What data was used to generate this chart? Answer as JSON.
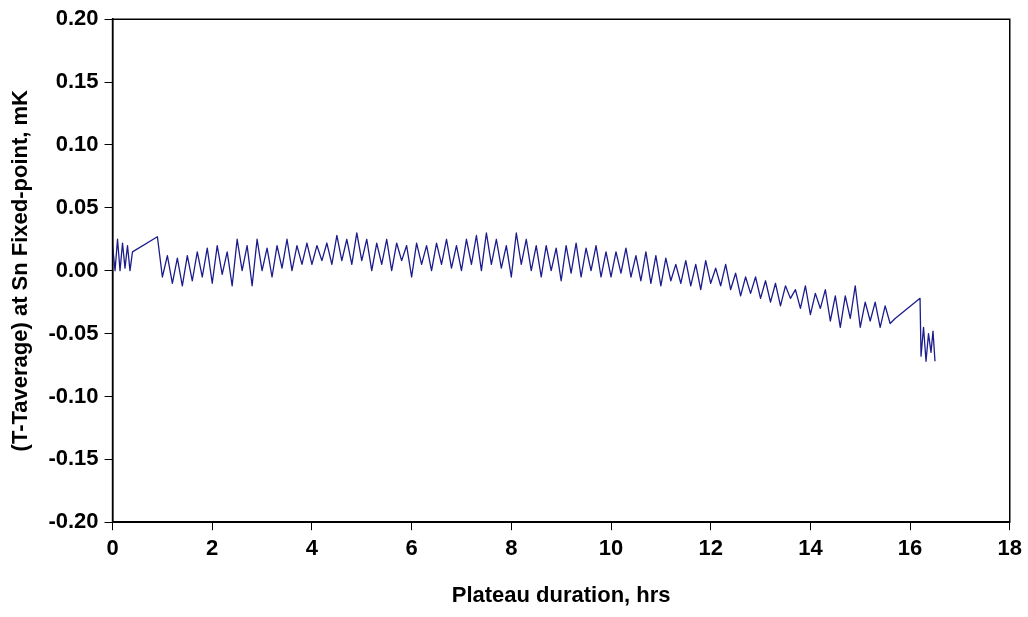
{
  "chart_data": {
    "type": "line",
    "xlabel": "Plateau duration, hrs",
    "ylabel": "(T-Taverage) at Sn Fixed-point, mK",
    "grid": false,
    "legend": false,
    "marker": "none",
    "line_style": "solid",
    "xlim": [
      0,
      18
    ],
    "xticks": [
      0,
      2,
      4,
      6,
      8,
      10,
      12,
      14,
      16,
      18
    ],
    "ylim": [
      -0.2,
      0.2
    ],
    "yticks": [
      {
        "value": -0.2,
        "label": "-0.20"
      },
      {
        "value": -0.15,
        "label": "-0.15"
      },
      {
        "value": -0.1,
        "label": "-0.10"
      },
      {
        "value": -0.05,
        "label": "-0.05"
      },
      {
        "value": 0,
        "label": "0.00"
      },
      {
        "value": 0.05,
        "label": "0.05"
      },
      {
        "value": 0.1,
        "label": "0.10"
      },
      {
        "value": 0.15,
        "label": "0.15"
      },
      {
        "value": 0.2,
        "label": "0.20"
      }
    ],
    "series": [
      {
        "color": "#1c1c8c",
        "x": [
          0,
          0.05,
          0.1,
          0.15,
          0.2,
          0.25,
          0.3,
          0.35,
          0.4,
          0.9,
          1.0,
          1.1,
          1.2,
          1.3,
          1.4,
          1.5,
          1.6,
          1.7,
          1.8,
          1.9,
          2.0,
          2.1,
          2.2,
          2.3,
          2.4,
          2.5,
          2.6,
          2.7,
          2.8,
          2.9,
          3.0,
          3.1,
          3.2,
          3.3,
          3.4,
          3.5,
          3.6,
          3.7,
          3.8,
          3.9,
          4.0,
          4.1,
          4.2,
          4.3,
          4.4,
          4.5,
          4.6,
          4.7,
          4.8,
          4.9,
          5.0,
          5.1,
          5.2,
          5.3,
          5.4,
          5.5,
          5.6,
          5.7,
          5.8,
          5.9,
          6.0,
          6.1,
          6.2,
          6.3,
          6.4,
          6.5,
          6.6,
          6.7,
          6.8,
          6.9,
          7.0,
          7.1,
          7.2,
          7.3,
          7.4,
          7.5,
          7.6,
          7.7,
          7.8,
          7.9,
          8.0,
          8.1,
          8.2,
          8.3,
          8.4,
          8.5,
          8.6,
          8.7,
          8.8,
          8.9,
          9.0,
          9.1,
          9.2,
          9.3,
          9.4,
          9.5,
          9.6,
          9.7,
          9.8,
          9.9,
          10.0,
          10.1,
          10.2,
          10.3,
          10.4,
          10.5,
          10.6,
          10.7,
          10.8,
          10.9,
          11.0,
          11.1,
          11.2,
          11.3,
          11.4,
          11.5,
          11.6,
          11.7,
          11.8,
          11.9,
          12.0,
          12.1,
          12.2,
          12.3,
          12.4,
          12.5,
          12.6,
          12.7,
          12.8,
          12.9,
          13.0,
          13.1,
          13.2,
          13.3,
          13.4,
          13.5,
          13.6,
          13.7,
          13.8,
          13.9,
          14.0,
          14.1,
          14.2,
          14.3,
          14.4,
          14.5,
          14.6,
          14.7,
          14.8,
          14.9,
          15.0,
          15.1,
          15.2,
          15.3,
          15.4,
          15.5,
          15.6,
          15.7,
          16.2,
          16.22,
          16.27,
          16.32,
          16.37,
          16.42,
          16.46,
          16.5
        ],
        "values": [
          0.02,
          0.0,
          0.025,
          0.0,
          0.022,
          0.002,
          0.02,
          0.0,
          0.015,
          0.027,
          -0.005,
          0.012,
          -0.01,
          0.01,
          -0.012,
          0.012,
          -0.008,
          0.015,
          -0.005,
          0.018,
          -0.01,
          0.02,
          -0.003,
          0.015,
          -0.012,
          0.025,
          0.0,
          0.02,
          -0.012,
          0.025,
          0.0,
          0.018,
          -0.005,
          0.02,
          0.002,
          0.025,
          0.0,
          0.02,
          0.005,
          0.022,
          0.005,
          0.02,
          0.008,
          0.022,
          0.005,
          0.028,
          0.008,
          0.025,
          0.005,
          0.03,
          0.008,
          0.025,
          0.0,
          0.022,
          0.005,
          0.025,
          0.0,
          0.022,
          0.008,
          0.02,
          -0.005,
          0.022,
          0.005,
          0.02,
          0.0,
          0.022,
          0.005,
          0.025,
          0.002,
          0.02,
          0.0,
          0.025,
          0.005,
          0.028,
          0.0,
          0.03,
          0.005,
          0.025,
          0.002,
          0.02,
          -0.005,
          0.03,
          0.005,
          0.025,
          0.0,
          0.02,
          -0.005,
          0.02,
          0.0,
          0.018,
          -0.008,
          0.02,
          -0.002,
          0.022,
          -0.005,
          0.018,
          0.0,
          0.02,
          -0.005,
          0.015,
          -0.005,
          0.015,
          -0.002,
          0.018,
          -0.005,
          0.012,
          -0.008,
          0.015,
          -0.01,
          0.012,
          -0.012,
          0.01,
          -0.008,
          0.005,
          -0.01,
          0.008,
          -0.012,
          0.005,
          -0.015,
          0.008,
          -0.01,
          0.002,
          -0.012,
          0.005,
          -0.015,
          -0.002,
          -0.02,
          -0.005,
          -0.018,
          -0.005,
          -0.022,
          -0.008,
          -0.025,
          -0.01,
          -0.028,
          -0.012,
          -0.022,
          -0.015,
          -0.03,
          -0.012,
          -0.035,
          -0.018,
          -0.03,
          -0.015,
          -0.04,
          -0.02,
          -0.045,
          -0.02,
          -0.038,
          -0.012,
          -0.045,
          -0.025,
          -0.04,
          -0.025,
          -0.045,
          -0.028,
          -0.042,
          -0.038,
          -0.022,
          -0.068,
          -0.045,
          -0.072,
          -0.05,
          -0.065,
          -0.048,
          -0.072
        ]
      }
    ]
  }
}
